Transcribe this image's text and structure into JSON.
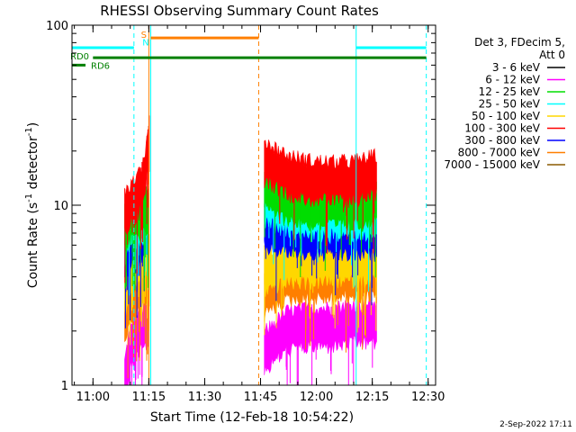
{
  "chart_data": {
    "type": "line",
    "title": "RHESSI Observing Summary Count Rates",
    "xlabel": "Start Time (12-Feb-18 10:54:22)",
    "ylabel_main": "Count Rate (s",
    "ylabel_sup1": "-1",
    "ylabel_mid": " detector",
    "ylabel_sup2": "-1",
    "ylabel_end": ")",
    "y_scale": "log",
    "ylim": [
      1,
      100
    ],
    "xlim": [
      "10:54:22",
      "12:32"
    ],
    "x_ticks": [
      {
        "t": "11:00",
        "label": "11:00"
      },
      {
        "t": "11:15",
        "label": "11:15"
      },
      {
        "t": "11:30",
        "label": "11:30"
      },
      {
        "t": "11:45",
        "label": "11:45"
      },
      {
        "t": "12:00",
        "label": "12:00"
      },
      {
        "t": "12:15",
        "label": "12:15"
      },
      {
        "t": "12:30",
        "label": "12:30"
      }
    ],
    "y_ticks": [
      {
        "value": 1,
        "label": "1"
      },
      {
        "value": 10,
        "label": "10"
      },
      {
        "value": 100,
        "label": "100"
      }
    ],
    "legend": {
      "header": [
        "Det 3, FDecim 5,",
        "Att 0"
      ],
      "position": "right",
      "entries": [
        {
          "label": "3 - 6 keV",
          "color": "#000000"
        },
        {
          "label": "6 - 12 keV",
          "color": "#ff00ff"
        },
        {
          "label": "12 - 25 keV",
          "color": "#00dd00"
        },
        {
          "label": "25 - 50 keV",
          "color": "#00ffff"
        },
        {
          "label": "50 - 100 keV",
          "color": "#ffd700"
        },
        {
          "label": "100 - 300 keV",
          "color": "#ff0000"
        },
        {
          "label": "300 - 800 keV",
          "color": "#0000ff"
        },
        {
          "label": "800 - 7000 keV",
          "color": "#ff7f00"
        },
        {
          "label": "7000 - 15000 keV",
          "color": "#8b5a00"
        }
      ]
    },
    "segments": [
      {
        "start": "11:08:30",
        "end": "11:15:10",
        "series": [
          {
            "band": "6 - 12 keV",
            "values": [
              1.1,
              1.6,
              1.9,
              2.1,
              2.2,
              2.4
            ]
          },
          {
            "band": "800 - 7000 keV",
            "values": [
              2.3,
              3.1,
              3.4,
              3.6,
              3.8,
              4.0
            ]
          },
          {
            "band": "50 - 100 keV",
            "values": [
              3.4,
              4.4,
              4.8,
              5.0,
              5.3,
              5.6
            ]
          },
          {
            "band": "300 - 800 keV",
            "values": [
              5.2,
              6.2,
              6.6,
              6.9,
              7.2,
              7.6
            ]
          },
          {
            "band": "25 - 50 keV",
            "values": [
              6.6,
              7.6,
              8.0,
              8.3,
              8.6,
              9.0
            ]
          },
          {
            "band": "12 - 25 keV",
            "values": [
              7.6,
              8.4,
              9.0,
              9.3,
              9.6,
              10.0
            ]
          },
          {
            "band": "100 - 300 keV",
            "values": [
              9.5,
              10.5,
              11.2,
              12.5,
              14.5,
              25.0
            ]
          }
        ]
      },
      {
        "start": "11:46:00",
        "end": "12:16:20",
        "series": [
          {
            "band": "6 - 12 keV",
            "values": [
              1.6,
              2.1,
              2.2,
              2.2,
              2.3,
              2.3
            ]
          },
          {
            "band": "800 - 7000 keV",
            "values": [
              3.3,
              4.0,
              4.1,
              4.1,
              4.2,
              4.2
            ]
          },
          {
            "band": "50 - 100 keV",
            "values": [
              4.5,
              5.0,
              5.0,
              5.1,
              5.1,
              5.2
            ]
          },
          {
            "band": "300 - 800 keV",
            "values": [
              7.8,
              7.4,
              7.2,
              7.1,
              7.1,
              7.2
            ]
          },
          {
            "band": "25 - 50 keV",
            "values": [
              11.0,
              9.6,
              9.2,
              9.1,
              9.2,
              9.4
            ]
          },
          {
            "band": "12 - 25 keV",
            "values": [
              13.0,
              11.2,
              10.6,
              10.4,
              10.5,
              10.8
            ]
          },
          {
            "band": "100 - 300 keV",
            "values": [
              18.5,
              15.5,
              14.5,
              14.2,
              14.4,
              15.5
            ]
          }
        ]
      }
    ],
    "flag_bars": [
      {
        "label": "",
        "color": "#00ffff",
        "start": "10:54:22",
        "end": "11:11:00",
        "level": 75
      },
      {
        "label": "",
        "color": "#00ffff",
        "start": "12:10:40",
        "end": "12:29:30",
        "level": 75
      },
      {
        "label": "",
        "color": "#ff7f00",
        "start": "11:15:30",
        "end": "11:44:30",
        "level": 85
      },
      {
        "label": "RD0",
        "color": "#008000",
        "start": "11:00",
        "end": "12:29:30",
        "level": 66
      },
      {
        "label": "RD6",
        "color": "#008000",
        "start": "10:54:22",
        "end": "10:58:00",
        "level": 60
      }
    ],
    "markers": [
      {
        "time": "11:11:00",
        "color": "#00ffff",
        "style": "dashed"
      },
      {
        "time": "11:15:00",
        "color": "#ff7f00",
        "style": "solid"
      },
      {
        "time": "11:15:30",
        "color": "#00ffff",
        "style": "solid"
      },
      {
        "time": "11:44:30",
        "color": "#ff7f00",
        "style": "dashed"
      },
      {
        "time": "12:10:40",
        "color": "#00ffff",
        "style": "solid"
      },
      {
        "time": "12:29:30",
        "color": "#00ffff",
        "style": "dashed"
      }
    ],
    "marker_labels": [
      {
        "text": "S",
        "color": "#ff7f00",
        "time": "11:13:40",
        "level": 85
      },
      {
        "text": "N",
        "color": "#00ffff",
        "time": "11:14:10",
        "level": 77
      }
    ],
    "timestamp": "2-Sep-2022 17:11"
  }
}
